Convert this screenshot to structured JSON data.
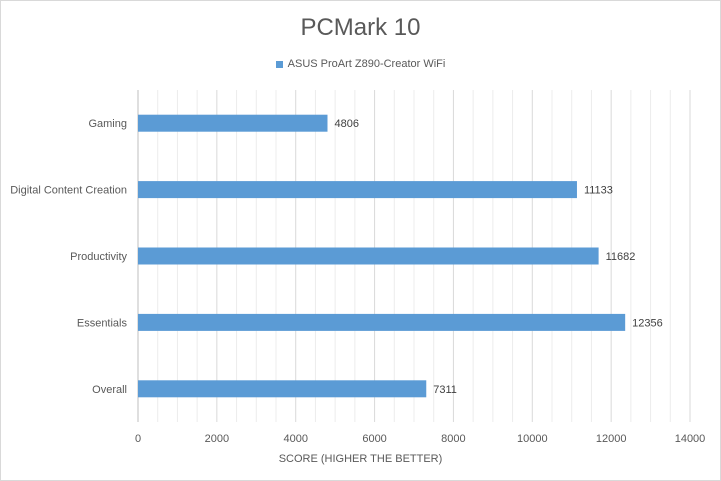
{
  "chart_data": {
    "type": "bar",
    "orientation": "horizontal",
    "title": "PCMark 10",
    "xlabel": "SCORE (HIGHER THE BETTER)",
    "ylabel": "",
    "categories": [
      "Gaming",
      "Digital Content Creation",
      "Productivity",
      "Essentials",
      "Overall"
    ],
    "series": [
      {
        "name": "ASUS ProArt Z890-Creator WiFi",
        "values": [
          4806,
          11133,
          11682,
          12356,
          7311
        ],
        "color": "#5b9bd5"
      }
    ],
    "xlim": [
      0,
      14000
    ],
    "xticks": [
      "0",
      "2000",
      "4000",
      "6000",
      "8000",
      "10000",
      "12000",
      "14000"
    ],
    "grid": true,
    "legend_position": "top"
  }
}
